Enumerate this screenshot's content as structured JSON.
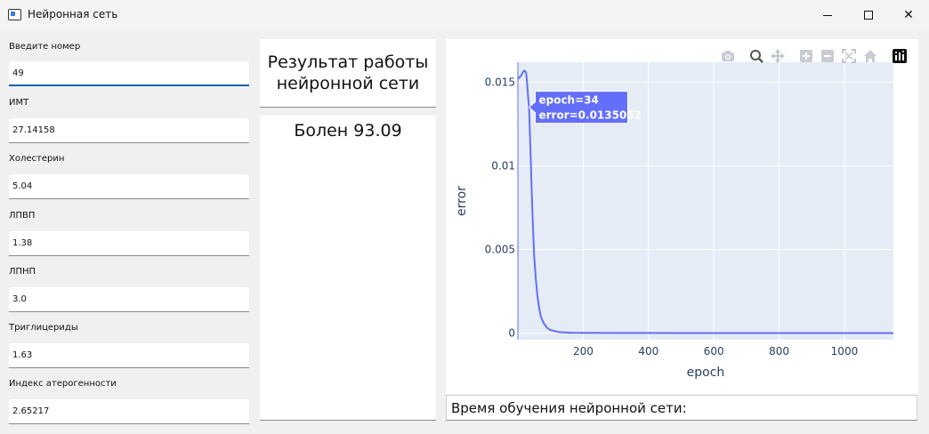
{
  "window": {
    "title": "Нейронная сеть",
    "minimize_glyph": "—",
    "maximize_glyph": "☐",
    "close_glyph": "✕"
  },
  "form": {
    "fields": [
      {
        "label": "Введите номер",
        "value": "49"
      },
      {
        "label": "ИМТ",
        "value": "27.14158"
      },
      {
        "label": "Холестерин",
        "value": "5.04"
      },
      {
        "label": "ЛПВП",
        "value": "1.38"
      },
      {
        "label": "ЛПНП",
        "value": "3.0"
      },
      {
        "label": "Триглицериды",
        "value": "1.63"
      },
      {
        "label": "Индекс атерогенности",
        "value": "2.65217"
      }
    ]
  },
  "result": {
    "title_line1": "Результат работы",
    "title_line2": "нейронной сети",
    "text": "Болен 93.09"
  },
  "training_time": {
    "label": "Время обучения нейронной сети:"
  },
  "plot_toolbar": {
    "icons": [
      "camera-icon",
      "zoom-icon",
      "pan-icon",
      "zoom-in-icon",
      "zoom-out-icon",
      "autoscale-icon",
      "reset-axes-icon",
      "plotly-logo-icon"
    ]
  },
  "colors": {
    "plot_bg": "#e5ecf6",
    "line": "#636efa",
    "grid": "#ffffff",
    "tooltip_bg": "#636efa",
    "axis_text": "#2a3f5f",
    "input_focus": "#1a5fb4"
  },
  "chart_data": {
    "type": "line",
    "xlabel": "epoch",
    "ylabel": "error",
    "xlim": [
      0,
      1150
    ],
    "ylim": [
      -0.0004,
      0.0162
    ],
    "x_ticks": [
      200,
      400,
      600,
      800,
      1000
    ],
    "x_tick_labels": [
      "200",
      "400",
      "600",
      "800",
      "1000"
    ],
    "y_ticks": [
      0,
      0.005,
      0.01,
      0.015
    ],
    "y_tick_labels": [
      "0",
      "0.005",
      "0.01",
      "0.015"
    ],
    "grid": true,
    "series": [
      {
        "x": [
          0,
          5,
          10,
          15,
          20,
          25,
          28,
          30,
          32,
          34,
          36,
          38,
          40,
          42,
          45,
          48,
          50,
          55,
          60,
          65,
          70,
          80,
          90,
          100,
          120,
          140,
          160,
          200,
          300,
          400,
          600,
          800,
          1000,
          1150
        ],
        "y": [
          0.0152,
          0.0153,
          0.0154,
          0.0156,
          0.0157,
          0.0156,
          0.015,
          0.0145,
          0.014,
          0.0135052,
          0.0125,
          0.0113,
          0.01,
          0.0087,
          0.007,
          0.0055,
          0.0046,
          0.0032,
          0.0022,
          0.0015,
          0.001,
          0.00055,
          0.0003,
          0.00018,
          8e-05,
          4e-05,
          2e-05,
          1e-05,
          4e-06,
          2e-06,
          1e-06,
          5e-07,
          3e-07,
          2e-07
        ]
      }
    ],
    "hover": {
      "x": 34,
      "y": 0.0135052,
      "line1": "epoch=34",
      "line2": "error=0.0135052"
    }
  }
}
